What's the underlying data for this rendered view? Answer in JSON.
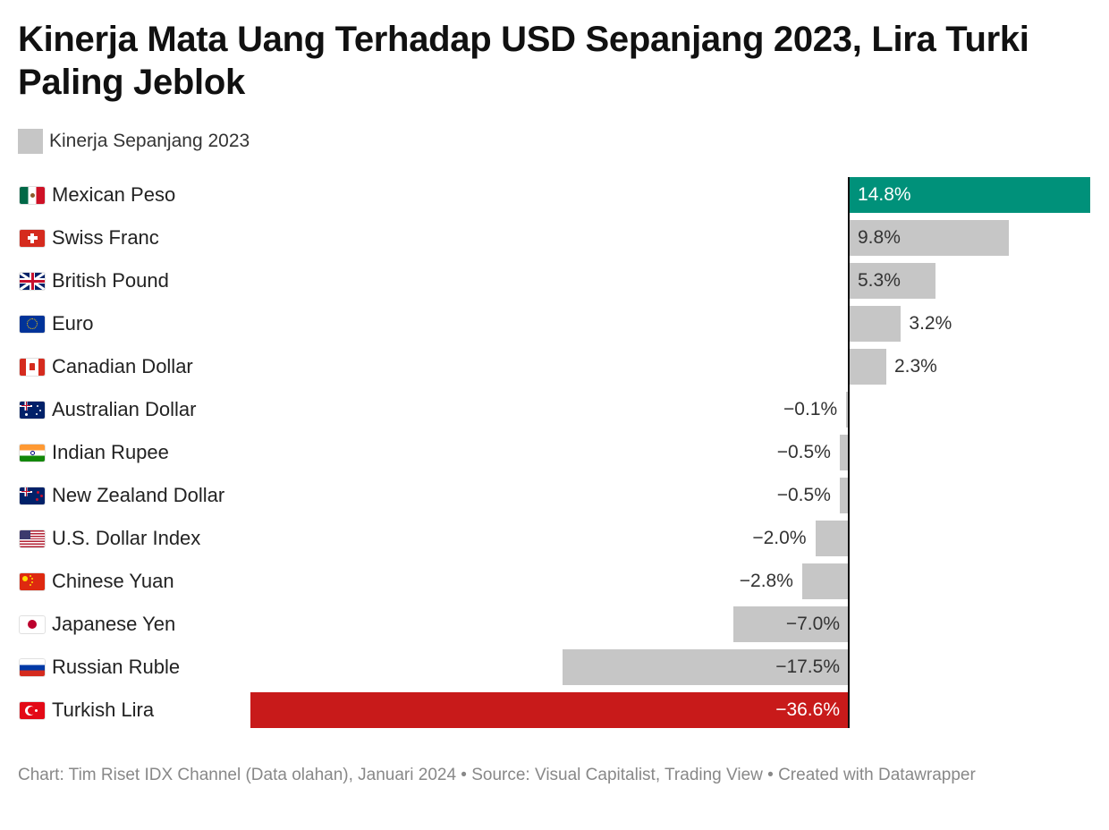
{
  "title": "Kinerja Mata Uang Terhadap USD Sepanjang 2023, Lira Turki Paling Jeblok",
  "legend": {
    "label": "Kinerja Sepanjang 2023",
    "color": "#c6c6c6"
  },
  "colors": {
    "default": "#c6c6c6",
    "positive_highlight": "#00917a",
    "negative_highlight": "#c81a1a",
    "axis": "#111111"
  },
  "chart_data": {
    "type": "bar",
    "orientation": "horizontal",
    "categories": [
      "Mexican Peso",
      "Swiss Franc",
      "British Pound",
      "Euro",
      "Canadian Dollar",
      "Australian Dollar",
      "Indian Rupee",
      "New Zealand Dollar",
      "U.S. Dollar Index",
      "Chinese Yuan",
      "Japanese Yen",
      "Russian Ruble",
      "Turkish Lira"
    ],
    "flags": [
      "mexico-flag-icon",
      "switzerland-flag-icon",
      "uk-flag-icon",
      "eu-flag-icon",
      "canada-flag-icon",
      "australia-flag-icon",
      "india-flag-icon",
      "new-zealand-flag-icon",
      "us-flag-icon",
      "china-flag-icon",
      "japan-flag-icon",
      "russia-flag-icon",
      "turkey-flag-icon"
    ],
    "values": [
      14.8,
      9.8,
      5.3,
      3.2,
      2.3,
      -0.1,
      -0.5,
      -0.5,
      -2.0,
      -2.8,
      -7.0,
      -17.5,
      -36.6
    ],
    "labels": [
      "14.8%",
      "9.8%",
      "5.3%",
      "3.2%",
      "2.3%",
      "−0.1%",
      "−0.5%",
      "−0.5%",
      "−2.0%",
      "−2.8%",
      "−7.0%",
      "−17.5%",
      "−36.6%"
    ],
    "highlight": [
      "positive",
      "",
      "",
      "",
      "",
      "",
      "",
      "",
      "",
      "",
      "",
      "",
      "negative"
    ],
    "series": [
      {
        "name": "Kinerja Sepanjang 2023"
      }
    ],
    "xlim": [
      -36.6,
      14.8
    ],
    "grid": false,
    "legend_position": "top-left"
  },
  "footer": "Chart: Tim Riset IDX Channel (Data olahan), Januari 2024 • Source: Visual Capitalist, Trading View • Created with Datawrapper"
}
